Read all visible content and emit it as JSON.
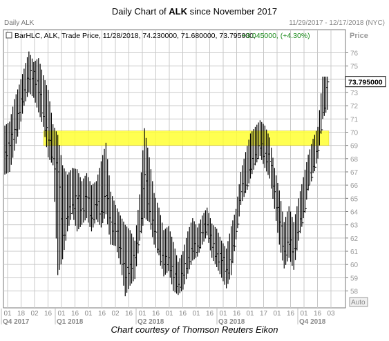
{
  "header": {
    "title_prefix": "Daily Chart of ",
    "title_ticker": "ALK",
    "title_suffix": " since November 2017",
    "left_label": "Daily ALK",
    "date_range": "11/29/2017 - 12/17/2018 (NYC)"
  },
  "legend": {
    "text": "BarHLC, ALK, Trade Price, 11/28/2018, 74.230000, 71.680000, 73.795000,",
    "change": "+3.045000, (+4.30%)",
    "change_color": "#1a8a1a"
  },
  "price_axis": {
    "title": "Price",
    "ticks": [
      "76",
      "75",
      "74",
      "73",
      "72",
      "71",
      "70",
      "69",
      "68",
      "67",
      "66",
      "65",
      "64",
      "63",
      "62",
      "61",
      "60",
      "59",
      "58"
    ],
    "current_label": "73.795000",
    "auto_label": "Auto"
  },
  "x_axis": {
    "day_ticks": [
      "01",
      "18",
      "02",
      "16",
      "01",
      "16",
      "01",
      "16",
      "02",
      "16",
      "01",
      "16",
      "01",
      "16",
      "01",
      "16",
      "01",
      "16",
      "01",
      "17",
      "01",
      "16",
      "01",
      "16",
      "03"
    ],
    "quarter_labels": [
      "Q4 2017",
      "Q1 2018",
      "Q2 2018",
      "Q3 2018",
      "Q4 2018"
    ]
  },
  "caption": "Chart courtesy of Thomson Reuters Eikon",
  "chart_data": {
    "type": "bar",
    "subtype": "HLC",
    "ticker": "ALK",
    "series": [
      {
        "values": [
          [
            68.5,
            70.5,
            66.8
          ],
          [
            69.0,
            70.8,
            67.0
          ],
          [
            70.2,
            72.5,
            68.6
          ],
          [
            71.5,
            73.6,
            70.2
          ],
          [
            73.2,
            74.8,
            72.0
          ],
          [
            74.0,
            76.1,
            73.0
          ],
          [
            74.6,
            75.3,
            72.6
          ],
          [
            73.0,
            75.6,
            71.5
          ],
          [
            71.2,
            74.3,
            70.4
          ],
          [
            69.4,
            73.2,
            68.1
          ],
          [
            68.0,
            70.6,
            67.5
          ],
          [
            67.0,
            69.8,
            59.2
          ],
          [
            62.2,
            67.5,
            60.4
          ],
          [
            63.6,
            66.8,
            62.5
          ],
          [
            64.5,
            67.3,
            63.8
          ],
          [
            65.0,
            67.2,
            62.5
          ],
          [
            64.2,
            66.3,
            63.0
          ],
          [
            65.1,
            66.9,
            63.5
          ],
          [
            63.5,
            66.0,
            62.5
          ],
          [
            64.5,
            66.3,
            63.4
          ],
          [
            64.0,
            67.8,
            62.8
          ],
          [
            65.2,
            69.2,
            63.8
          ],
          [
            63.2,
            65.5,
            61.5
          ],
          [
            62.5,
            64.5,
            61.4
          ],
          [
            61.2,
            63.7,
            60.0
          ],
          [
            59.0,
            63.0,
            57.6
          ],
          [
            60.0,
            62.6,
            58.4
          ],
          [
            60.5,
            61.8,
            58.9
          ],
          [
            62.5,
            65.3,
            61.8
          ],
          [
            66.8,
            70.3,
            63.5
          ],
          [
            64.0,
            68.1,
            63.2
          ],
          [
            62.5,
            65.4,
            61.5
          ],
          [
            61.0,
            64.3,
            60.8
          ],
          [
            60.0,
            62.6,
            59.1
          ],
          [
            60.5,
            62.9,
            59.5
          ],
          [
            59.0,
            61.7,
            58.0
          ],
          [
            58.5,
            60.2,
            57.7
          ],
          [
            59.2,
            61.0,
            58.1
          ],
          [
            60.5,
            62.5,
            59.3
          ],
          [
            61.0,
            63.5,
            60.3
          ],
          [
            61.4,
            62.8,
            60.6
          ],
          [
            62.4,
            63.7,
            61.5
          ],
          [
            63.0,
            64.3,
            62.2
          ],
          [
            61.3,
            63.1,
            60.5
          ],
          [
            60.8,
            62.7,
            59.8
          ],
          [
            60.3,
            61.8,
            59.0
          ],
          [
            59.6,
            61.2,
            58.2
          ],
          [
            60.2,
            62.9,
            59.2
          ],
          [
            62.5,
            64.2,
            61.9
          ],
          [
            65.5,
            67.0,
            64.5
          ],
          [
            66.0,
            68.5,
            65.4
          ],
          [
            67.2,
            69.9,
            66.5
          ],
          [
            68.3,
            70.4,
            67.5
          ],
          [
            68.8,
            70.9,
            68.2
          ],
          [
            68.4,
            70.5,
            67.3
          ],
          [
            67.8,
            69.6,
            66.5
          ],
          [
            65.5,
            67.3,
            64.2
          ],
          [
            63.2,
            65.6,
            61.5
          ],
          [
            61.0,
            63.2,
            59.7
          ],
          [
            61.5,
            64.4,
            60.5
          ],
          [
            61.2,
            63.2,
            59.6
          ],
          [
            62.5,
            65.0,
            61.8
          ],
          [
            64.0,
            66.6,
            63.5
          ],
          [
            66.0,
            68.3,
            65.6
          ],
          [
            67.4,
            69.5,
            66.9
          ],
          [
            68.6,
            70.4,
            68.0
          ],
          [
            71.5,
            74.2,
            71.0
          ],
          [
            73.8,
            74.2,
            71.7
          ]
        ]
      }
    ],
    "ylim": [
      57.3,
      77.0
    ],
    "highlight_zone": [
      69.0,
      70.1
    ],
    "highlight_color": "#ffff33",
    "bar_color": "#000000",
    "grid": true
  }
}
